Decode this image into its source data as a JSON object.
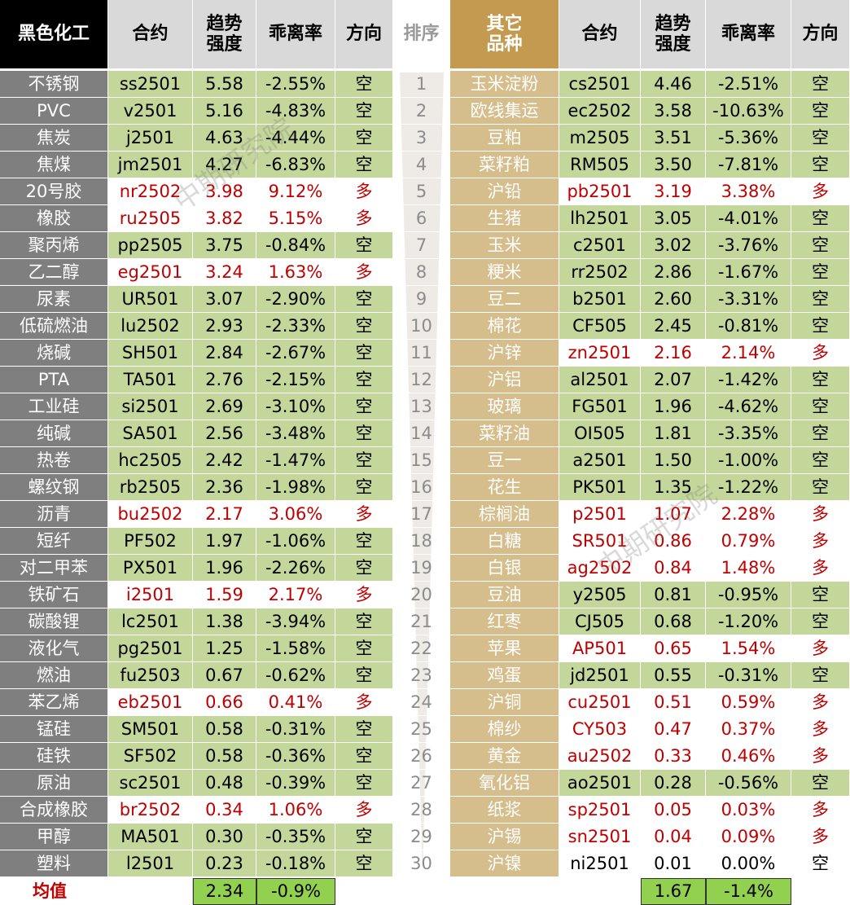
{
  "header": {
    "left": [
      "黑色化工",
      "合约",
      "趋势\n强度",
      "乖离率",
      "方向"
    ],
    "rank": "排序",
    "right": [
      "其它\n品种",
      "合约",
      "趋势\n强度",
      "乖离率",
      "方向"
    ]
  },
  "left_rows": [
    {
      "cells": [
        "不锈钢",
        "ss2501",
        "5.58",
        "-2.55%",
        "空"
      ],
      "fill": "#c4d79b",
      "ink": "#000000"
    },
    {
      "cells": [
        "PVC",
        "v2501",
        "5.16",
        "-4.83%",
        "空"
      ],
      "fill": "#c4d79b",
      "ink": "#000000"
    },
    {
      "cells": [
        "焦炭",
        "j2501",
        "4.63",
        "-4.44%",
        "空"
      ],
      "fill": "#c4d79b",
      "ink": "#000000"
    },
    {
      "cells": [
        "焦煤",
        "jm2501",
        "4.27",
        "-6.83%",
        "空"
      ],
      "fill": "#c4d79b",
      "ink": "#000000"
    },
    {
      "cells": [
        "20号胶",
        "nr2502",
        "3.98",
        "9.12%",
        "多"
      ],
      "fill": "#ffffff",
      "ink": "#c00000"
    },
    {
      "cells": [
        "橡胶",
        "ru2505",
        "3.82",
        "5.15%",
        "多"
      ],
      "fill": "#ffffff",
      "ink": "#c00000"
    },
    {
      "cells": [
        "聚丙烯",
        "pp2505",
        "3.75",
        "-0.84%",
        "空"
      ],
      "fill": "#c4d79b",
      "ink": "#000000"
    },
    {
      "cells": [
        "乙二醇",
        "eg2501",
        "3.24",
        "1.63%",
        "多"
      ],
      "fill": "#ffffff",
      "ink": "#c00000"
    },
    {
      "cells": [
        "尿素",
        "UR501",
        "3.07",
        "-2.90%",
        "空"
      ],
      "fill": "#c4d79b",
      "ink": "#000000"
    },
    {
      "cells": [
        "低硫燃油",
        "lu2502",
        "2.93",
        "-2.33%",
        "空"
      ],
      "fill": "#c4d79b",
      "ink": "#000000"
    },
    {
      "cells": [
        "烧碱",
        "SH501",
        "2.84",
        "-2.67%",
        "空"
      ],
      "fill": "#c4d79b",
      "ink": "#000000"
    },
    {
      "cells": [
        "PTA",
        "TA501",
        "2.76",
        "-2.15%",
        "空"
      ],
      "fill": "#c4d79b",
      "ink": "#000000"
    },
    {
      "cells": [
        "工业硅",
        "si2501",
        "2.69",
        "-3.10%",
        "空"
      ],
      "fill": "#c4d79b",
      "ink": "#000000"
    },
    {
      "cells": [
        "纯碱",
        "SA501",
        "2.56",
        "-3.48%",
        "空"
      ],
      "fill": "#c4d79b",
      "ink": "#000000"
    },
    {
      "cells": [
        "热卷",
        "hc2505",
        "2.42",
        "-1.47%",
        "空"
      ],
      "fill": "#c4d79b",
      "ink": "#000000"
    },
    {
      "cells": [
        "螺纹钢",
        "rb2505",
        "2.36",
        "-1.98%",
        "空"
      ],
      "fill": "#c4d79b",
      "ink": "#000000"
    },
    {
      "cells": [
        "沥青",
        "bu2502",
        "2.17",
        "3.06%",
        "多"
      ],
      "fill": "#ffffff",
      "ink": "#c00000"
    },
    {
      "cells": [
        "短纤",
        "PF502",
        "1.97",
        "-1.06%",
        "空"
      ],
      "fill": "#c4d79b",
      "ink": "#000000"
    },
    {
      "cells": [
        "对二甲苯",
        "PX501",
        "1.96",
        "-2.26%",
        "空"
      ],
      "fill": "#c4d79b",
      "ink": "#000000"
    },
    {
      "cells": [
        "铁矿石",
        "i2501",
        "1.59",
        "2.17%",
        "多"
      ],
      "fill": "#ffffff",
      "ink": "#c00000"
    },
    {
      "cells": [
        "碳酸锂",
        "lc2501",
        "1.38",
        "-3.94%",
        "空"
      ],
      "fill": "#c4d79b",
      "ink": "#000000"
    },
    {
      "cells": [
        "液化气",
        "pg2501",
        "1.25",
        "-1.58%",
        "空"
      ],
      "fill": "#c4d79b",
      "ink": "#000000"
    },
    {
      "cells": [
        "燃油",
        "fu2503",
        "0.67",
        "-0.62%",
        "空"
      ],
      "fill": "#c4d79b",
      "ink": "#000000"
    },
    {
      "cells": [
        "苯乙烯",
        "eb2501",
        "0.66",
        "0.41%",
        "多"
      ],
      "fill": "#ffffff",
      "ink": "#c00000"
    },
    {
      "cells": [
        "锰硅",
        "SM501",
        "0.58",
        "-0.31%",
        "空"
      ],
      "fill": "#c4d79b",
      "ink": "#000000"
    },
    {
      "cells": [
        "硅铁",
        "SF502",
        "0.58",
        "-0.36%",
        "空"
      ],
      "fill": "#c4d79b",
      "ink": "#000000"
    },
    {
      "cells": [
        "原油",
        "sc2501",
        "0.48",
        "-0.39%",
        "空"
      ],
      "fill": "#c4d79b",
      "ink": "#000000"
    },
    {
      "cells": [
        "合成橡胶",
        "br2502",
        "0.34",
        "1.06%",
        "多"
      ],
      "fill": "#ffffff",
      "ink": "#c00000"
    },
    {
      "cells": [
        "甲醇",
        "MA501",
        "0.30",
        "-0.35%",
        "空"
      ],
      "fill": "#c4d79b",
      "ink": "#000000"
    },
    {
      "cells": [
        "塑料",
        "l2501",
        "0.23",
        "-0.18%",
        "空"
      ],
      "fill": "#c4d79b",
      "ink": "#000000"
    }
  ],
  "ranks": [
    "1",
    "2",
    "3",
    "4",
    "5",
    "6",
    "7",
    "8",
    "9",
    "10",
    "11",
    "12",
    "13",
    "14",
    "15",
    "16",
    "17",
    "18",
    "19",
    "20",
    "21",
    "22",
    "23",
    "24",
    "25",
    "26",
    "27",
    "28",
    "29",
    "30"
  ],
  "right_rows": [
    {
      "cells": [
        "玉米淀粉",
        "cs2501",
        "4.46",
        "-2.51%",
        "空"
      ],
      "fill": "#c4d79b",
      "ink": "#000000"
    },
    {
      "cells": [
        "欧线集运",
        "ec2502",
        "3.58",
        "-10.63%",
        "空"
      ],
      "fill": "#c4d79b",
      "ink": "#000000"
    },
    {
      "cells": [
        "豆粕",
        "m2505",
        "3.51",
        "-5.36%",
        "空"
      ],
      "fill": "#c4d79b",
      "ink": "#000000"
    },
    {
      "cells": [
        "菜籽粕",
        "RM505",
        "3.50",
        "-7.81%",
        "空"
      ],
      "fill": "#c4d79b",
      "ink": "#000000"
    },
    {
      "cells": [
        "沪铅",
        "pb2501",
        "3.19",
        "3.38%",
        "多"
      ],
      "fill": "#ffffff",
      "ink": "#c00000"
    },
    {
      "cells": [
        "生猪",
        "lh2501",
        "3.05",
        "-4.01%",
        "空"
      ],
      "fill": "#c4d79b",
      "ink": "#000000"
    },
    {
      "cells": [
        "玉米",
        "c2501",
        "3.02",
        "-3.76%",
        "空"
      ],
      "fill": "#c4d79b",
      "ink": "#000000"
    },
    {
      "cells": [
        "粳米",
        "rr2502",
        "2.86",
        "-1.67%",
        "空"
      ],
      "fill": "#c4d79b",
      "ink": "#000000"
    },
    {
      "cells": [
        "豆二",
        "b2501",
        "2.60",
        "-3.31%",
        "空"
      ],
      "fill": "#c4d79b",
      "ink": "#000000"
    },
    {
      "cells": [
        "棉花",
        "CF505",
        "2.45",
        "-0.81%",
        "空"
      ],
      "fill": "#c4d79b",
      "ink": "#000000"
    },
    {
      "cells": [
        "沪锌",
        "zn2501",
        "2.16",
        "2.14%",
        "多"
      ],
      "fill": "#ffffff",
      "ink": "#c00000"
    },
    {
      "cells": [
        "沪铝",
        "al2501",
        "2.07",
        "-1.42%",
        "空"
      ],
      "fill": "#c4d79b",
      "ink": "#000000"
    },
    {
      "cells": [
        "玻璃",
        "FG501",
        "1.96",
        "-4.62%",
        "空"
      ],
      "fill": "#c4d79b",
      "ink": "#000000"
    },
    {
      "cells": [
        "菜籽油",
        "OI505",
        "1.81",
        "-3.35%",
        "空"
      ],
      "fill": "#c4d79b",
      "ink": "#000000"
    },
    {
      "cells": [
        "豆一",
        "a2501",
        "1.50",
        "-1.00%",
        "空"
      ],
      "fill": "#c4d79b",
      "ink": "#000000"
    },
    {
      "cells": [
        "花生",
        "PK501",
        "1.35",
        "-1.22%",
        "空"
      ],
      "fill": "#c4d79b",
      "ink": "#000000"
    },
    {
      "cells": [
        "棕榈油",
        "p2501",
        "1.07",
        "2.28%",
        "多"
      ],
      "fill": "#ffffff",
      "ink": "#c00000"
    },
    {
      "cells": [
        "白糖",
        "SR501",
        "0.86",
        "0.79%",
        "多"
      ],
      "fill": "#ffffff",
      "ink": "#c00000"
    },
    {
      "cells": [
        "白银",
        "ag2502",
        "0.84",
        "1.48%",
        "多"
      ],
      "fill": "#ffffff",
      "ink": "#c00000"
    },
    {
      "cells": [
        "豆油",
        "y2505",
        "0.81",
        "-0.95%",
        "空"
      ],
      "fill": "#c4d79b",
      "ink": "#000000"
    },
    {
      "cells": [
        "红枣",
        "CJ505",
        "0.68",
        "-1.20%",
        "空"
      ],
      "fill": "#c4d79b",
      "ink": "#000000"
    },
    {
      "cells": [
        "苹果",
        "AP501",
        "0.65",
        "1.54%",
        "多"
      ],
      "fill": "#ffffff",
      "ink": "#c00000"
    },
    {
      "cells": [
        "鸡蛋",
        "jd2501",
        "0.55",
        "-0.31%",
        "空"
      ],
      "fill": "#c4d79b",
      "ink": "#000000"
    },
    {
      "cells": [
        "沪铜",
        "cu2501",
        "0.51",
        "0.59%",
        "多"
      ],
      "fill": "#ffffff",
      "ink": "#c00000"
    },
    {
      "cells": [
        "棉纱",
        "CY503",
        "0.47",
        "0.37%",
        "多"
      ],
      "fill": "#ffffff",
      "ink": "#c00000"
    },
    {
      "cells": [
        "黄金",
        "au2502",
        "0.33",
        "0.46%",
        "多"
      ],
      "fill": "#ffffff",
      "ink": "#c00000"
    },
    {
      "cells": [
        "氧化铝",
        "ao2501",
        "0.28",
        "-0.56%",
        "空"
      ],
      "fill": "#c4d79b",
      "ink": "#000000"
    },
    {
      "cells": [
        "纸浆",
        "sp2501",
        "0.05",
        "0.03%",
        "多"
      ],
      "fill": "#ffffff",
      "ink": "#c00000"
    },
    {
      "cells": [
        "沪锡",
        "sn2501",
        "0.04",
        "0.09%",
        "多"
      ],
      "fill": "#ffffff",
      "ink": "#c00000"
    },
    {
      "cells": [
        "沪镍",
        "ni2501",
        "0.01",
        "0.00%",
        "空"
      ],
      "fill": "#ffffff",
      "ink": "#000000"
    }
  ],
  "footer": {
    "label": "均值",
    "left": [
      "2.34",
      "-0.9%"
    ],
    "right": [
      "1.67",
      "-1.4%"
    ]
  },
  "watermark": "中期研究院"
}
